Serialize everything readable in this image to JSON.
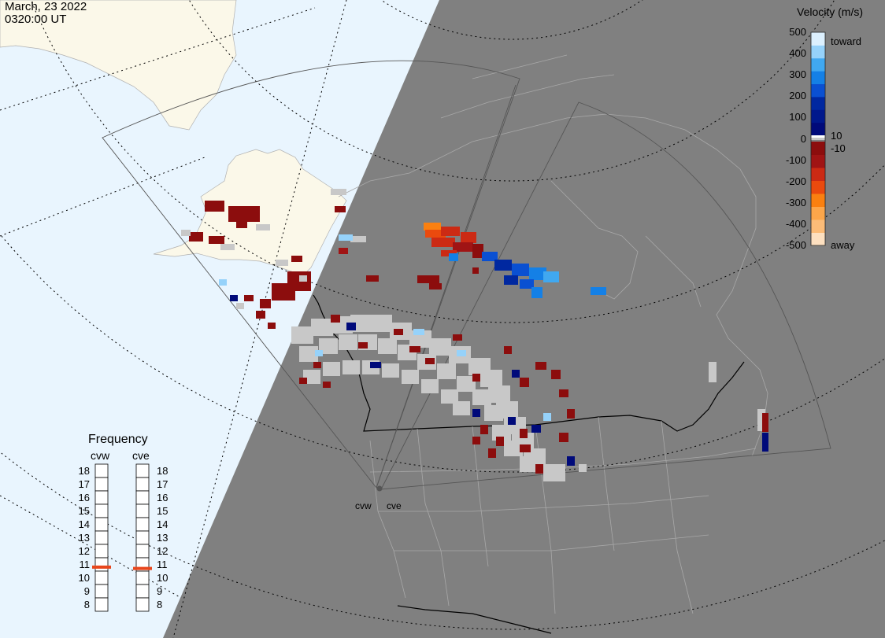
{
  "title": {
    "date": "March, 23 2022",
    "time": "0320:00 UT"
  },
  "legend": {
    "title": "Velocity (m/s)",
    "ticks": [
      "500",
      "400",
      "300",
      "200",
      "100",
      "0",
      "-100",
      "-200",
      "-300",
      "-400",
      "-500"
    ],
    "toward_label": "toward",
    "away_label": "away",
    "pos_threshold": "10",
    "neg_threshold": "-10",
    "colors": [
      "#fde0c0",
      "#fca64a",
      "#fa8010",
      "#ea4a0e",
      "#cc2a14",
      "#a01414",
      "#8c0d0d",
      "#ffffff",
      "#c8c8c8",
      "#000a7a",
      "#0028a0",
      "#0a50d2",
      "#1480e6",
      "#40a8f0",
      "#96d2fa",
      "#dcf0fe"
    ]
  },
  "frequency": {
    "title": "Frequency",
    "radar_west": "cvw",
    "radar_east": "cve",
    "ticks": [
      "18",
      "17",
      "16",
      "15",
      "14",
      "13",
      "12",
      "11",
      "10",
      "9",
      "8"
    ],
    "cvw_value_mhz": 10.8,
    "cve_value_mhz": 10.7,
    "marker_color": "#e8461c"
  },
  "radars": {
    "west": "cvw",
    "east": "cve"
  },
  "colors": {
    "ocean": "#e9f5fe",
    "night": "#808080",
    "land_day": "#fbf8e9",
    "ground_scatter": "#c8c8c8",
    "coast_night": "#a8a8a8"
  }
}
